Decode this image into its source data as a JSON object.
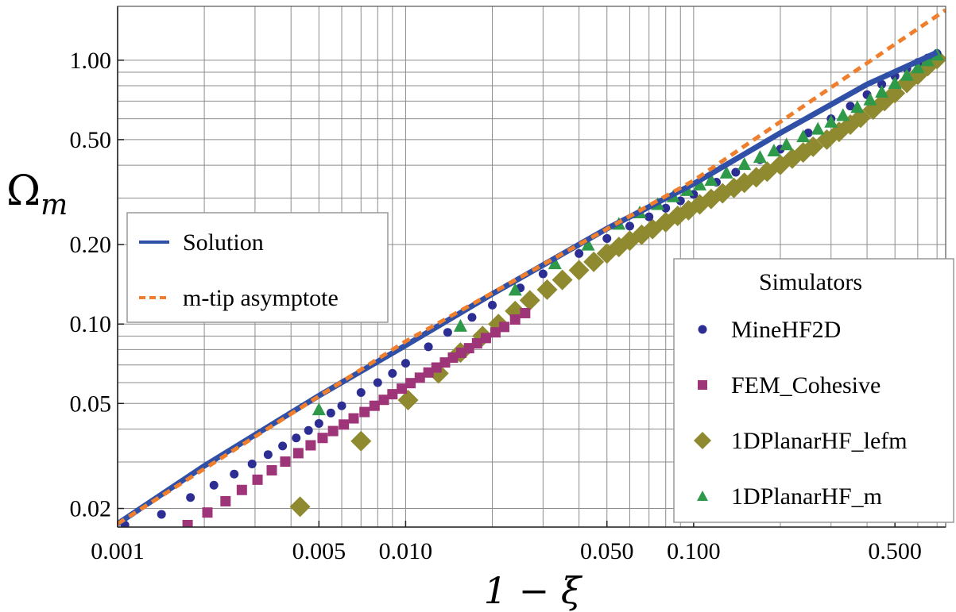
{
  "chart_data": {
    "type": "scatter",
    "xscale": "log",
    "yscale": "log",
    "xlim": [
      0.001,
      0.75
    ],
    "ylim": [
      0.017,
      1.6
    ],
    "xlabel": "1 − ξ",
    "ylabel": "Ω_m",
    "grid": true,
    "x_ticks": [
      {
        "value": 0.001,
        "label": "0.001"
      },
      {
        "value": 0.005,
        "label": "0.005"
      },
      {
        "value": 0.01,
        "label": "0.010"
      },
      {
        "value": 0.05,
        "label": "0.050"
      },
      {
        "value": 0.1,
        "label": "0.100"
      },
      {
        "value": 0.5,
        "label": "0.500"
      }
    ],
    "y_ticks": [
      {
        "value": 0.02,
        "label": "0.02"
      },
      {
        "value": 0.05,
        "label": "0.05"
      },
      {
        "value": 0.1,
        "label": "0.10"
      },
      {
        "value": 0.2,
        "label": "0.20"
      },
      {
        "value": 0.5,
        "label": "0.50"
      },
      {
        "value": 1.0,
        "label": "1.00"
      }
    ],
    "line_legend": {
      "placement": "left",
      "entries": [
        {
          "name": "Solution",
          "color": "#3050a8",
          "style": "solid"
        },
        {
          "name": "m-tip asymptote",
          "color": "#f07f2d",
          "style": "dashed"
        }
      ]
    },
    "marker_legend": {
      "placement": "right",
      "title": "Simulators",
      "entries": [
        {
          "name": "MineHF2D",
          "color": "#2c2e94",
          "marker": "circle"
        },
        {
          "name": "FEM_Cohesive",
          "color": "#9e3578",
          "marker": "square"
        },
        {
          "name": "1DPlanarHF_lefm",
          "color": "#8f8a30",
          "marker": "diamond"
        },
        {
          "name": "1DPlanarHF_m",
          "color": "#2e9a49",
          "marker": "triangle"
        }
      ]
    },
    "lines": [
      {
        "name": "Solution",
        "color": "#3050a8",
        "x": [
          0.001,
          0.002,
          0.005,
          0.01,
          0.02,
          0.05,
          0.1,
          0.2,
          0.4,
          0.6,
          0.7
        ],
        "y": [
          0.0175,
          0.029,
          0.0535,
          0.083,
          0.13,
          0.23,
          0.34,
          0.53,
          0.81,
          0.99,
          1.07
        ]
      },
      {
        "name": "m-tip asymptote",
        "color": "#f07f2d",
        "x": [
          0.001,
          0.01,
          0.1,
          0.5,
          0.75
        ],
        "y": [
          0.0175,
          0.086,
          0.35,
          1.15,
          1.55
        ]
      }
    ],
    "series": [
      {
        "name": "MineHF2D",
        "marker": "circle",
        "color": "#2c2e94",
        "x": [
          0.00106,
          0.00142,
          0.00179,
          0.00216,
          0.00254,
          0.00293,
          0.00333,
          0.00374,
          0.00417,
          0.0046,
          0.005,
          0.0055,
          0.006,
          0.007,
          0.008,
          0.009,
          0.01,
          0.012,
          0.014,
          0.017,
          0.02,
          0.025,
          0.03,
          0.04,
          0.05,
          0.06,
          0.07,
          0.08,
          0.09,
          0.1,
          0.12,
          0.14,
          0.17,
          0.2,
          0.25,
          0.3,
          0.35,
          0.4,
          0.45,
          0.5,
          0.55,
          0.6,
          0.65,
          0.7
        ],
        "y": [
          0.0173,
          0.019,
          0.022,
          0.0245,
          0.027,
          0.0295,
          0.032,
          0.0345,
          0.037,
          0.0395,
          0.042,
          0.046,
          0.049,
          0.055,
          0.06,
          0.065,
          0.071,
          0.082,
          0.093,
          0.106,
          0.118,
          0.137,
          0.155,
          0.185,
          0.211,
          0.235,
          0.255,
          0.275,
          0.293,
          0.31,
          0.345,
          0.376,
          0.42,
          0.46,
          0.53,
          0.6,
          0.67,
          0.74,
          0.81,
          0.87,
          0.93,
          0.98,
          1.02,
          1.06
        ]
      },
      {
        "name": "FEM_Cohesive",
        "marker": "square",
        "color": "#9e3578",
        "x": [
          0.00175,
          0.00205,
          0.00237,
          0.0027,
          0.00306,
          0.00343,
          0.00382,
          0.00424,
          0.00468,
          0.00515,
          0.0056,
          0.0061,
          0.0066,
          0.0072,
          0.0078,
          0.0084,
          0.009,
          0.0097,
          0.0104,
          0.0112,
          0.012,
          0.0128,
          0.0137,
          0.0146,
          0.0156,
          0.0166,
          0.0177,
          0.019,
          0.0205,
          0.022,
          0.024,
          0.026
        ],
        "y": [
          0.0173,
          0.0193,
          0.0213,
          0.0235,
          0.0257,
          0.0279,
          0.0301,
          0.0324,
          0.0347,
          0.037,
          0.0393,
          0.0416,
          0.0439,
          0.0464,
          0.049,
          0.0516,
          0.0542,
          0.0569,
          0.0597,
          0.0626,
          0.0655,
          0.0684,
          0.0715,
          0.0746,
          0.0778,
          0.081,
          0.0845,
          0.0885,
          0.093,
          0.0975,
          0.104,
          0.11
        ]
      },
      {
        "name": "1DPlanarHF_lefm",
        "marker": "diamond",
        "color": "#8f8a30",
        "x": [
          0.0043,
          0.007,
          0.0102,
          0.013,
          0.0155,
          0.0185,
          0.021,
          0.024,
          0.027,
          0.031,
          0.035,
          0.04,
          0.045,
          0.05,
          0.055,
          0.06,
          0.066,
          0.072,
          0.08,
          0.088,
          0.096,
          0.105,
          0.115,
          0.126,
          0.138,
          0.15,
          0.165,
          0.18,
          0.2,
          0.22,
          0.24,
          0.26,
          0.29,
          0.32,
          0.35,
          0.38,
          0.42,
          0.46,
          0.5,
          0.55,
          0.6,
          0.65,
          0.7
        ],
        "y": [
          0.0203,
          0.036,
          0.0515,
          0.065,
          0.078,
          0.09,
          0.1,
          0.112,
          0.123,
          0.135,
          0.147,
          0.16,
          0.172,
          0.185,
          0.196,
          0.207,
          0.218,
          0.229,
          0.243,
          0.257,
          0.27,
          0.284,
          0.298,
          0.313,
          0.328,
          0.343,
          0.36,
          0.378,
          0.401,
          0.424,
          0.447,
          0.47,
          0.5,
          0.535,
          0.57,
          0.605,
          0.65,
          0.7,
          0.75,
          0.82,
          0.88,
          0.95,
          1.01
        ]
      },
      {
        "name": "1DPlanarHF_m",
        "marker": "triangle",
        "color": "#2e9a49",
        "x": [
          0.005,
          0.0155,
          0.024,
          0.033,
          0.043,
          0.055,
          0.065,
          0.075,
          0.085,
          0.095,
          0.105,
          0.115,
          0.13,
          0.15,
          0.17,
          0.19,
          0.21,
          0.24,
          0.27,
          0.3,
          0.33,
          0.37,
          0.41,
          0.45,
          0.5,
          0.55,
          0.6,
          0.65,
          0.7
        ],
        "y": [
          0.0475,
          0.0985,
          0.135,
          0.17,
          0.2,
          0.24,
          0.265,
          0.285,
          0.305,
          0.322,
          0.338,
          0.352,
          0.375,
          0.404,
          0.43,
          0.455,
          0.48,
          0.515,
          0.55,
          0.585,
          0.62,
          0.665,
          0.71,
          0.76,
          0.82,
          0.88,
          0.94,
          1.0,
          1.05
        ]
      }
    ]
  }
}
